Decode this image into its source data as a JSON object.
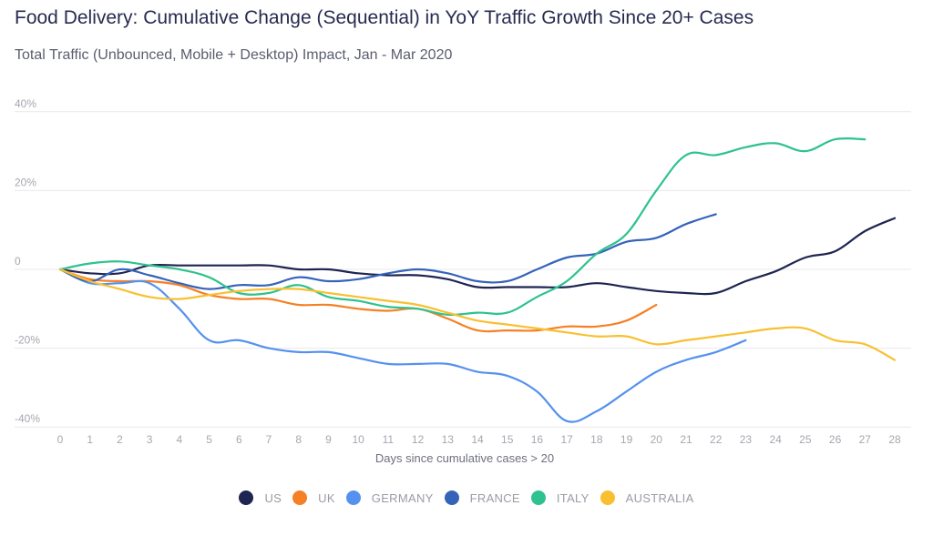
{
  "chart_data": {
    "type": "line",
    "title": "Food Delivery: Cumulative Change (Sequential) in YoY Traffic Growth Since 20+ Cases",
    "subtitle": "Total Traffic (Unbounced, Mobile + Desktop) Impact, Jan - Mar 2020",
    "xlabel": "Days since cumulative cases > 20",
    "ylabel": "",
    "x": [
      0,
      1,
      2,
      3,
      4,
      5,
      6,
      7,
      8,
      9,
      10,
      11,
      12,
      13,
      14,
      15,
      16,
      17,
      18,
      19,
      20,
      21,
      22,
      23,
      24,
      25,
      26,
      27,
      28
    ],
    "x_tick_labels": [
      "0",
      "1",
      "2",
      "3",
      "4",
      "5",
      "6",
      "7",
      "8",
      "9",
      "10",
      "11",
      "12",
      "13",
      "14",
      "15",
      "16",
      "17",
      "18",
      "19",
      "20",
      "21",
      "22",
      "23",
      "24",
      "25",
      "26",
      "27",
      "28"
    ],
    "ylim": [
      -40,
      40
    ],
    "xlim": [
      0,
      28
    ],
    "y_ticks": [
      40,
      20,
      0,
      -20,
      -40
    ],
    "y_tick_labels": [
      "40%",
      "20%",
      "0",
      "-20%",
      "-40%"
    ],
    "grid": true,
    "legend_position": "bottom",
    "series": [
      {
        "name": "US",
        "color": "#1e2550",
        "values": [
          0,
          -1,
          -1,
          1,
          1,
          1,
          1,
          1,
          0,
          0,
          -1,
          -1.5,
          -1.5,
          -2.5,
          -4.5,
          -4.5,
          -4.5,
          -4.5,
          -3.5,
          -4.5,
          -5.5,
          -6,
          -6,
          -3,
          -0.5,
          3,
          4.6,
          9.7,
          13
        ]
      },
      {
        "name": "UK",
        "color": "#f58025",
        "values": [
          0,
          -2.5,
          -3,
          -3,
          -4,
          -6.5,
          -7.5,
          -7.5,
          -9,
          -9,
          -10,
          -10.5,
          -10,
          -12.5,
          -15.5,
          -15.5,
          -15.5,
          -14.5,
          -14.5,
          -13,
          -9
        ]
      },
      {
        "name": "GERMANY",
        "color": "#5591ee",
        "values": [
          0,
          -3.5,
          -3.5,
          -3.5,
          -10,
          -18,
          -18,
          -20,
          -21,
          -21,
          -22.5,
          -24,
          -24,
          -24,
          -26,
          -27,
          -31,
          -38.5,
          -36,
          -31,
          -26,
          -23,
          -21,
          -18
        ]
      },
      {
        "name": "FRANCE",
        "color": "#3563ba",
        "values": [
          0,
          -3,
          0,
          -1.5,
          -3.5,
          -5,
          -4,
          -4,
          -2,
          -3,
          -2.5,
          -1,
          0,
          -1,
          -3,
          -3,
          0,
          3,
          4,
          7,
          8,
          11.5,
          14
        ]
      },
      {
        "name": "ITALY",
        "color": "#2ec28f",
        "values": [
          0,
          1.5,
          2,
          1,
          0,
          -2,
          -6,
          -6,
          -4,
          -7,
          -8,
          -9.5,
          -10,
          -11.5,
          -11,
          -11,
          -7,
          -3,
          4,
          9,
          20,
          29,
          29,
          31,
          32,
          30,
          33,
          33
        ]
      },
      {
        "name": "AUSTRALIA",
        "color": "#f8c031",
        "values": [
          0,
          -3,
          -5,
          -7,
          -7.5,
          -6.5,
          -5.5,
          -5,
          -5,
          -6,
          -7,
          -8,
          -9,
          -11,
          -13,
          -14,
          -15,
          -16,
          -17,
          -17,
          -19,
          -18,
          -17,
          -16,
          -15,
          -15,
          -18,
          -19,
          -23
        ]
      }
    ]
  }
}
